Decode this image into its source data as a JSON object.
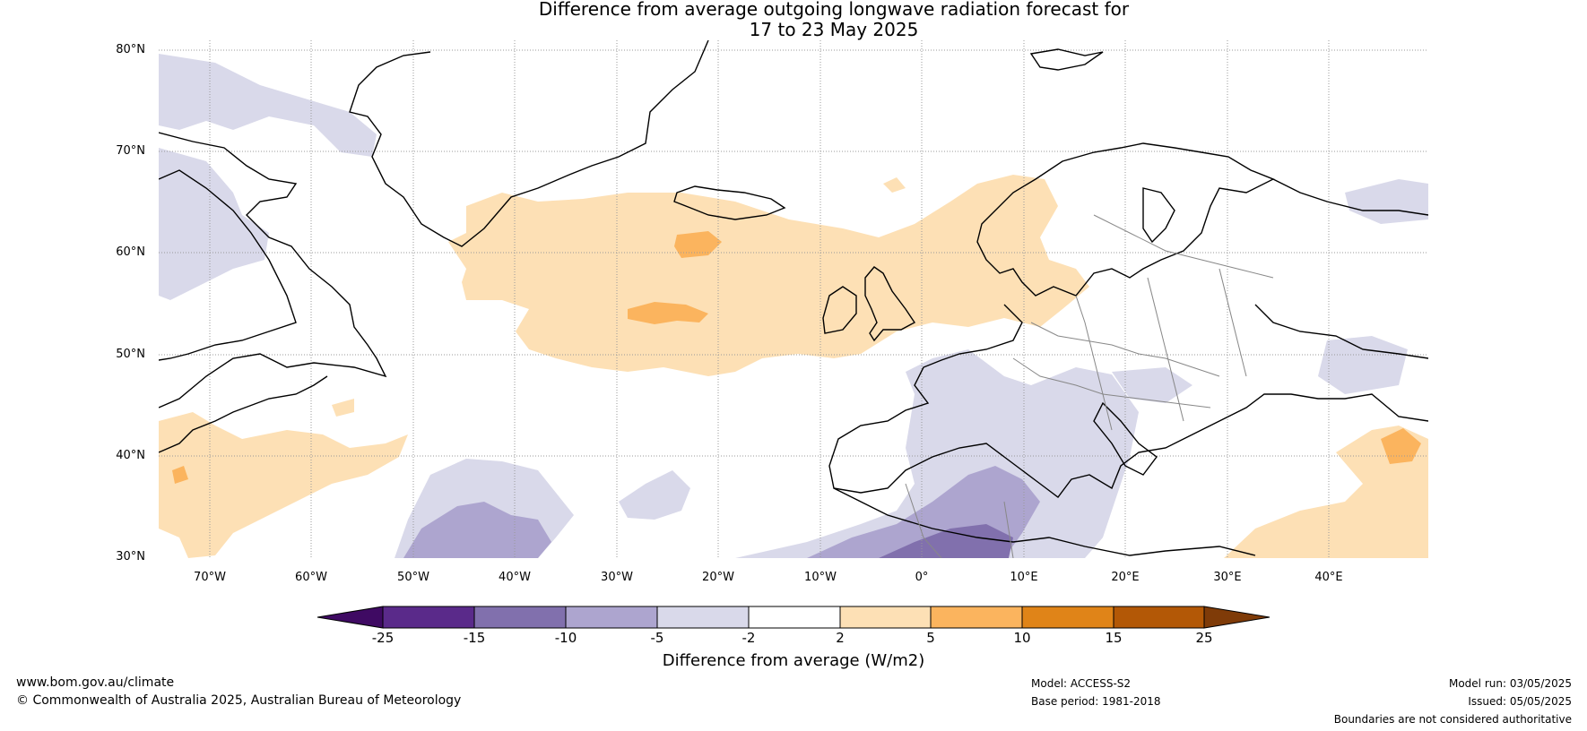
{
  "title": {
    "line1": "Difference from average outgoing longwave radiation forecast for",
    "line2": "17 to 23 May 2025"
  },
  "lat_labels": [
    "80°N",
    "70°N",
    "60°N",
    "50°N",
    "40°N",
    "30°N"
  ],
  "lon_labels": [
    "70°W",
    "60°W",
    "50°W",
    "40°W",
    "30°W",
    "20°W",
    "10°W",
    "0°",
    "10°E",
    "20°E",
    "30°E",
    "40°E"
  ],
  "colorbar": {
    "title": "Difference from average (W/m2)",
    "ticks": [
      "-25",
      "-15",
      "-10",
      "-5",
      "-2",
      "2",
      "5",
      "10",
      "15",
      "25"
    ],
    "colors": [
      "#3f0a63",
      "#5a2a8a",
      "#8170ad",
      "#ada5cf",
      "#d9d9ea",
      "#ffffff",
      "#fde0b5",
      "#fbb45e",
      "#e08418",
      "#b35806",
      "#7f3b08"
    ]
  },
  "footer": {
    "url": "www.bom.gov.au/climate",
    "copyright": "© Commonwealth of Australia 2025, Australian Bureau of Meteorology",
    "model": "Model: ACCESS-S2",
    "base_period": "Base period: 1981-2018",
    "model_run": "Model run: 03/05/2025",
    "issued": "Issued: 05/05/2025",
    "disclaimer": "Boundaries are not considered authoritative"
  }
}
